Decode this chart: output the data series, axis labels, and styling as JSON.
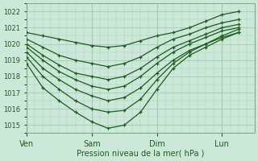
{
  "xlabel": "Pression niveau de la mer( hPa )",
  "bg_color": "#cce8d8",
  "grid_color": "#aacfba",
  "line_color": "#1a5e1a",
  "marker": "+",
  "ylim": [
    1014.5,
    1022.5
  ],
  "yticks": [
    1015,
    1016,
    1017,
    1018,
    1019,
    1020,
    1021,
    1022
  ],
  "xtick_labels": [
    "Ven",
    "Sam",
    "Dim",
    "Lun"
  ],
  "xtick_positions": [
    0,
    48,
    96,
    144
  ],
  "xmax": 168,
  "lines": [
    [
      1020.7,
      1020.5,
      1020.3,
      1020.1,
      1019.9,
      1019.8,
      1019.9,
      1020.2,
      1020.5,
      1020.7,
      1021.0,
      1021.4,
      1021.8,
      1022.0
    ],
    [
      1020.3,
      1019.8,
      1019.3,
      1019.0,
      1018.8,
      1018.6,
      1018.8,
      1019.2,
      1019.8,
      1020.3,
      1020.6,
      1021.0,
      1021.3,
      1021.5
    ],
    [
      1020.0,
      1019.3,
      1018.7,
      1018.2,
      1018.0,
      1017.8,
      1018.0,
      1018.5,
      1019.2,
      1019.8,
      1020.2,
      1020.6,
      1021.0,
      1021.2
    ],
    [
      1019.8,
      1019.0,
      1018.3,
      1017.8,
      1017.4,
      1017.2,
      1017.4,
      1018.0,
      1018.8,
      1019.5,
      1020.0,
      1020.4,
      1020.8,
      1021.0
    ],
    [
      1019.5,
      1018.5,
      1017.8,
      1017.2,
      1016.8,
      1016.5,
      1016.7,
      1017.3,
      1018.2,
      1019.0,
      1019.6,
      1020.0,
      1020.4,
      1020.7
    ],
    [
      1019.2,
      1018.0,
      1017.2,
      1016.5,
      1016.0,
      1015.8,
      1015.9,
      1016.6,
      1017.8,
      1018.8,
      1019.5,
      1020.0,
      1020.5,
      1020.9
    ],
    [
      1018.8,
      1017.3,
      1016.5,
      1015.8,
      1015.2,
      1014.8,
      1015.0,
      1015.8,
      1017.2,
      1018.5,
      1019.3,
      1019.8,
      1020.3,
      1020.7
    ]
  ],
  "line_x": [
    0,
    12,
    24,
    36,
    48,
    60,
    72,
    84,
    96,
    108,
    120,
    132,
    144,
    156
  ]
}
